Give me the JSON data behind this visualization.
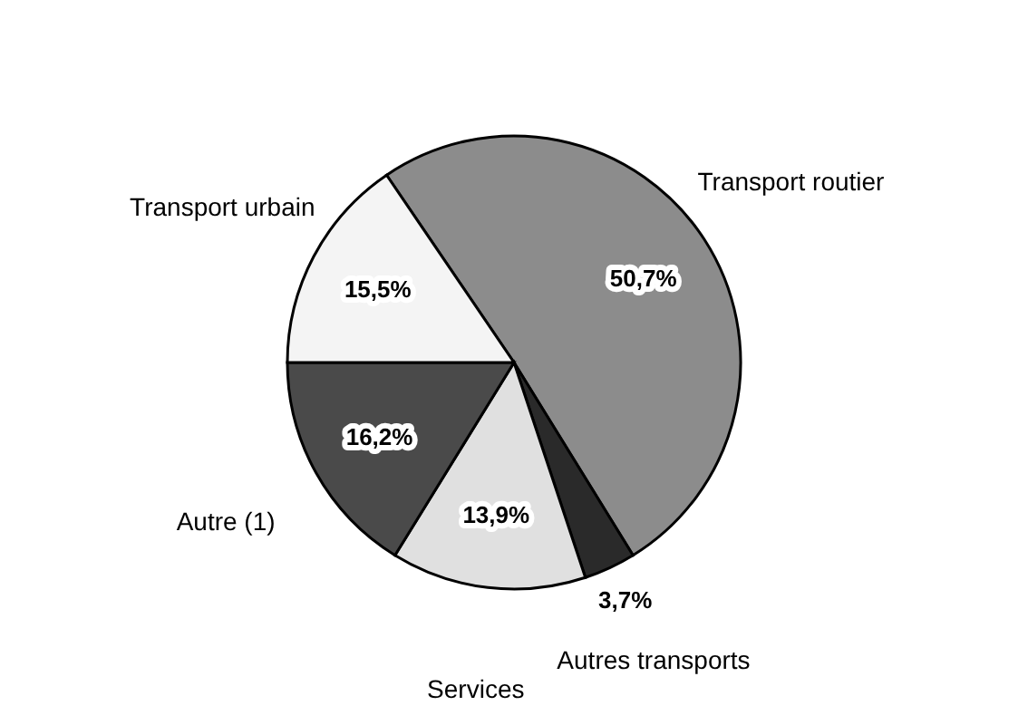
{
  "chart_data": {
    "type": "pie",
    "categories": [
      "Transport routier",
      "Autres transports",
      "Services",
      "Autre (1)",
      "Transport urbain"
    ],
    "values": [
      50.7,
      3.7,
      13.9,
      16.2,
      15.5
    ],
    "value_labels": [
      "50,7%",
      "3,7%",
      "13,9%",
      "16,2%",
      "15,5%"
    ],
    "colors": [
      "#8c8c8c",
      "#2a2a2a",
      "#e0e0e0",
      "#4a4a4a",
      "#f4f4f4"
    ]
  }
}
